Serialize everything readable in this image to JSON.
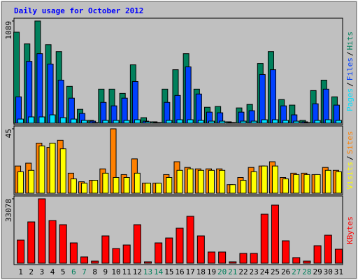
{
  "chart_data": [
    {
      "type": "bar",
      "title": "Daily usage for October 2012",
      "legend_separator": "/",
      "ylim": [
        0,
        1089
      ],
      "yticks": [
        1089
      ],
      "series": [
        {
          "name": "Hits",
          "color": "#00805C",
          "values": [
            970,
            845,
            1089,
            837,
            763,
            393,
            148,
            30,
            363,
            363,
            318,
            622,
            59,
            15,
            363,
            570,
            741,
            363,
            170,
            178,
            15,
            163,
            200,
            637,
            763,
            252,
            193,
            30,
            348,
            459,
            281
          ]
        },
        {
          "name": "Files",
          "color": "#0040FF",
          "values": [
            281,
            659,
            741,
            630,
            459,
            267,
            104,
            22,
            222,
            185,
            267,
            444,
            22,
            7,
            222,
            296,
            600,
            311,
            118,
            111,
            7,
            118,
            133,
            519,
            570,
            185,
            89,
            15,
            207,
            363,
            193
          ]
        },
        {
          "name": "Pages",
          "color": "#00E0FF",
          "values": [
            44,
            67,
            67,
            89,
            59,
            44,
            30,
            7,
            30,
            30,
            30,
            37,
            15,
            7,
            30,
            37,
            37,
            30,
            22,
            22,
            7,
            22,
            22,
            37,
            37,
            30,
            22,
            7,
            30,
            37,
            30
          ]
        }
      ]
    },
    {
      "type": "bar",
      "ylim": [
        0,
        45
      ],
      "yticks": [
        45
      ],
      "series": [
        {
          "name": "Sites",
          "color": "#FF8000",
          "values": [
            19,
            21,
            35,
            32,
            37,
            14,
            8,
            9,
            17,
            45,
            13,
            24,
            7,
            7,
            13,
            22,
            18,
            17,
            17,
            17,
            6,
            11,
            18,
            19,
            22,
            11,
            14,
            14,
            13,
            18,
            16
          ]
        },
        {
          "name": "Visits",
          "color": "#FFFF00",
          "values": [
            15,
            16,
            33,
            35,
            31,
            10,
            7,
            9,
            14,
            11,
            11,
            14,
            7,
            7,
            11,
            16,
            17,
            16,
            16,
            16,
            6,
            9,
            15,
            19,
            19,
            10,
            13,
            13,
            13,
            16,
            15
          ]
        }
      ]
    },
    {
      "type": "bar",
      "ylim": [
        0,
        33078
      ],
      "yticks": [
        33078
      ],
      "series": [
        {
          "name": "KBytes",
          "color": "#FF0000",
          "values": [
            11864,
            21211,
            33078,
            21930,
            19773,
            10426,
            3236,
            1079,
            14022,
            7550,
            9348,
            19773,
            719,
            10426,
            12943,
            17977,
            24088,
            14022,
            5752,
            5752,
            719,
            5033,
            5033,
            25167,
            29841,
            11505,
            2876,
            1079,
            8988,
            14381,
            7191
          ]
        }
      ],
      "categories": [
        "1",
        "2",
        "3",
        "4",
        "5",
        "6",
        "7",
        "8",
        "9",
        "10",
        "11",
        "12",
        "13",
        "14",
        "15",
        "16",
        "17",
        "18",
        "19",
        "20",
        "21",
        "22",
        "23",
        "24",
        "25",
        "26",
        "27",
        "28",
        "29",
        "30",
        "31"
      ],
      "category_colors": [
        "#000000",
        "#000000",
        "#000000",
        "#000000",
        "#000000",
        "#00805C",
        "#00805C",
        "#000000",
        "#000000",
        "#000000",
        "#000000",
        "#000000",
        "#00805C",
        "#00805C",
        "#000000",
        "#000000",
        "#000000",
        "#000000",
        "#000000",
        "#00805C",
        "#00805C",
        "#000000",
        "#000000",
        "#000000",
        "#000000",
        "#000000",
        "#00805C",
        "#00805C",
        "#000000",
        "#000000",
        "#000000"
      ]
    }
  ]
}
